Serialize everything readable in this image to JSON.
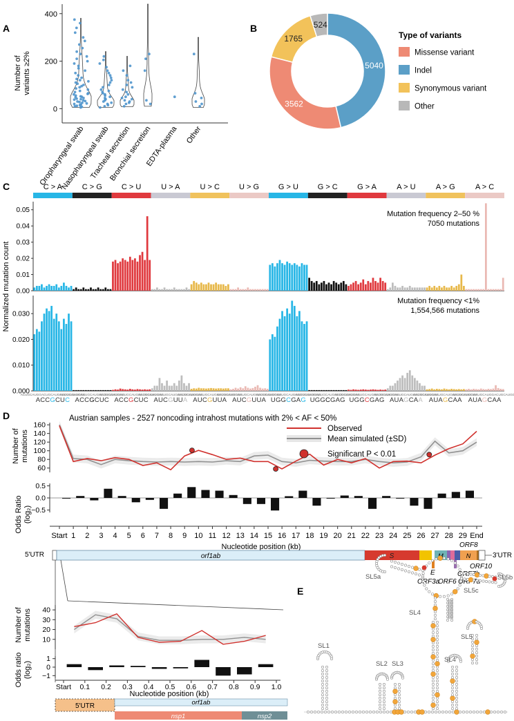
{
  "panel_labels": {
    "a": "A",
    "b": "B",
    "c": "C",
    "d": "D",
    "e": "E"
  },
  "chart_data": [
    {
      "type": "violin",
      "ylabel": "Number of variants ≥2%",
      "yticks": [
        0,
        200,
        400
      ],
      "ylim": [
        -60,
        440
      ],
      "categories": [
        "Oropharyngeal swab",
        "Nasopharyngeal swab",
        "Tracheal secretion",
        "Bronchial secretion",
        "EDTA-plasma",
        "Other"
      ],
      "points": [
        [
          5,
          8,
          10,
          12,
          15,
          18,
          20,
          22,
          25,
          28,
          30,
          32,
          35,
          38,
          40,
          42,
          45,
          48,
          50,
          52,
          55,
          60,
          62,
          65,
          70,
          75,
          80,
          85,
          90,
          95,
          100,
          105,
          110,
          115,
          120,
          125,
          130,
          140,
          150,
          160,
          170,
          180,
          190,
          200,
          210,
          220,
          230,
          240,
          255,
          270,
          285,
          300,
          320,
          340,
          360,
          375
        ],
        [
          5,
          10,
          15,
          20,
          25,
          30,
          35,
          40,
          45,
          50,
          55,
          60,
          65,
          70,
          75,
          80,
          90,
          100,
          110,
          120,
          130,
          140,
          150,
          160,
          175,
          190,
          205,
          220
        ],
        [
          10,
          20,
          25,
          30,
          35,
          40,
          45,
          50,
          60,
          70,
          80,
          90,
          100,
          110,
          120,
          140,
          160,
          180
        ],
        [
          20,
          35,
          160,
          210,
          230
        ],
        [
          50
        ],
        [
          10,
          20,
          30,
          45,
          65,
          230
        ]
      ]
    },
    {
      "type": "pie",
      "legend_title": "Type of variants",
      "slices": [
        {
          "label": "Indel",
          "value": 5040,
          "value_label": "5040",
          "color": "#5b9fc7"
        },
        {
          "label": "Missense variant",
          "value": 3562,
          "value_label": "3562",
          "color": "#ee8a74"
        },
        {
          "label": "Synonymous variant",
          "value": 1765,
          "value_label": "1765",
          "color": "#f2c25a"
        },
        {
          "label": "Other",
          "value": 524,
          "value_label": "524",
          "color": "#b8b8b8"
        }
      ],
      "legend": [
        {
          "label": "Missense variant",
          "color": "#ee8a74"
        },
        {
          "label": "Indel",
          "color": "#5b9fc7"
        },
        {
          "label": "Synonymous variant",
          "color": "#f2c25a"
        },
        {
          "label": "Other",
          "color": "#b8b8b8"
        }
      ]
    },
    {
      "type": "bar",
      "ylabel": "Normalized mutation count",
      "groups": [
        {
          "label": "C > A",
          "color": "#27b6e6"
        },
        {
          "label": "C > G",
          "color": "#222222"
        },
        {
          "label": "C > U",
          "color": "#e0393e"
        },
        {
          "label": "U > A",
          "color": "#c9c9d3"
        },
        {
          "label": "U > C",
          "color": "#f0c25c"
        },
        {
          "label": "U > G",
          "color": "#ebc9c5"
        },
        {
          "label": "G > U",
          "color": "#27b6e6"
        },
        {
          "label": "G > C",
          "color": "#222222"
        },
        {
          "label": "G > A",
          "color": "#e0393e"
        },
        {
          "label": "A > U",
          "color": "#c9c9d3"
        },
        {
          "label": "A > G",
          "color": "#f0c25c"
        },
        {
          "label": "A > C",
          "color": "#ebc9c5"
        }
      ],
      "bar_colors": [
        "#27b6e6",
        "#111111",
        "#e0393e",
        "#bdbdbd",
        "#e7b84a",
        "#eab9b3",
        "#27b6e6",
        "#111111",
        "#e0393e",
        "#bdbdbd",
        "#e7b84a",
        "#eab9b3"
      ],
      "top": {
        "annotation": [
          "Mutation frequency 2–50 %",
          "7050 mutations"
        ],
        "yticks": [
          0,
          0.01,
          0.02,
          0.03,
          0.04,
          0.05
        ],
        "ytick_labels": [
          "0.00",
          "0.01",
          "0.02",
          "0.03",
          "0.04",
          "0.05"
        ],
        "ylim": [
          0,
          0.055
        ],
        "values": [
          [
            0.002,
            0.003,
            0.003,
            0.004,
            0.002,
            0.003,
            0.004,
            0.003,
            0.003,
            0.004,
            0.002,
            0.003,
            0.005,
            0.003,
            0.002,
            0.003
          ],
          [
            0.001,
            0.002,
            0.001,
            0.001,
            0.002,
            0.001,
            0.001,
            0.002,
            0.001,
            0.001,
            0.002,
            0.001,
            0.001,
            0.002,
            0.001,
            0.001
          ],
          [
            0.018,
            0.019,
            0.017,
            0.018,
            0.02,
            0.019,
            0.018,
            0.021,
            0.019,
            0.02,
            0.018,
            0.022,
            0.024,
            0.019,
            0.046,
            0.019
          ],
          [
            0.001,
            0.001,
            0.002,
            0.001,
            0.001,
            0.002,
            0.001,
            0.001,
            0.001,
            0.002,
            0.001,
            0.001,
            0.001,
            0.001,
            0.002,
            0.001
          ],
          [
            0.004,
            0.006,
            0.005,
            0.004,
            0.005,
            0.004,
            0.004,
            0.005,
            0.004,
            0.004,
            0.005,
            0.004,
            0.004,
            0.004,
            0.003,
            0.004
          ],
          [
            0.001,
            0.001,
            0.001,
            0.002,
            0.001,
            0.001,
            0.001,
            0.002,
            0.001,
            0.001,
            0.001,
            0.001,
            0.001,
            0.001,
            0.001,
            0.001
          ],
          [
            0.016,
            0.017,
            0.015,
            0.017,
            0.019,
            0.017,
            0.016,
            0.018,
            0.017,
            0.016,
            0.017,
            0.016,
            0.015,
            0.017,
            0.016,
            0.016
          ],
          [
            0.008,
            0.006,
            0.005,
            0.006,
            0.004,
            0.005,
            0.006,
            0.004,
            0.005,
            0.004,
            0.006,
            0.005,
            0.004,
            0.005,
            0.006,
            0.004
          ],
          [
            0.003,
            0.004,
            0.005,
            0.006,
            0.004,
            0.005,
            0.007,
            0.004,
            0.006,
            0.005,
            0.008,
            0.006,
            0.005,
            0.008,
            0.006,
            0.005
          ],
          [
            0.001,
            0.002,
            0.005,
            0.003,
            0.002,
            0.002,
            0.003,
            0.002,
            0.002,
            0.003,
            0.002,
            0.002,
            0.002,
            0.002,
            0.002,
            0.002
          ],
          [
            0.002,
            0.003,
            0.002,
            0.003,
            0.002,
            0.003,
            0.002,
            0.003,
            0.002,
            0.002,
            0.003,
            0.002,
            0.003,
            0.004,
            0.01,
            0.003
          ],
          [
            0.001,
            0.001,
            0.001,
            0.001,
            0.001,
            0.001,
            0.001,
            0.001,
            0.054,
            0.001,
            0.001,
            0.001,
            0.001,
            0.001,
            0.001,
            0.008
          ]
        ]
      },
      "bottom": {
        "annotation": [
          "Mutation frequency <1%",
          "1,554,566 mutations"
        ],
        "yticks": [
          0,
          0.01,
          0.02,
          0.03
        ],
        "ytick_labels": [
          "0.000",
          "0.010",
          "0.020",
          "0.030"
        ],
        "ylim": [
          0,
          0.037
        ],
        "values": [
          [
            0.022,
            0.024,
            0.023,
            0.027,
            0.03,
            0.032,
            0.031,
            0.033,
            0.028,
            0.03,
            0.027,
            0.024,
            0.028,
            0.026,
            0.03,
            0.027
          ],
          [
            0.0003,
            0.0003,
            0.0003,
            0.0003,
            0.0003,
            0.0003,
            0.0003,
            0.0003,
            0.0003,
            0.0003,
            0.0003,
            0.0003,
            0.0003,
            0.0003,
            0.0003,
            0.0003
          ],
          [
            0.0004,
            0.0006,
            0.0005,
            0.0009,
            0.0007,
            0.0006,
            0.0005,
            0.0008,
            0.0006,
            0.0005,
            0.0007,
            0.0006,
            0.0005,
            0.0006,
            0.0005,
            0.0006
          ],
          [
            0.001,
            0.002,
            0.002,
            0.005,
            0.003,
            0.002,
            0.004,
            0.002,
            0.002,
            0.003,
            0.002,
            0.004,
            0.006,
            0.003,
            0.002,
            0.003
          ],
          [
            0.0008,
            0.001,
            0.0009,
            0.0012,
            0.001,
            0.001,
            0.0009,
            0.001,
            0.0011,
            0.001,
            0.0009,
            0.001,
            0.001,
            0.0009,
            0.001,
            0.001
          ],
          [
            0.0006,
            0.0008,
            0.0012,
            0.0009,
            0.0014,
            0.001,
            0.0018,
            0.0012,
            0.0009,
            0.0011,
            0.0016,
            0.0022,
            0.0012,
            0.0009,
            0.001,
            0.0008
          ],
          [
            0.02,
            0.022,
            0.021,
            0.025,
            0.028,
            0.031,
            0.029,
            0.032,
            0.03,
            0.035,
            0.033,
            0.029,
            0.031,
            0.027,
            0.026,
            0.027
          ],
          [
            0.0003,
            0.0003,
            0.0003,
            0.0003,
            0.0003,
            0.0003,
            0.0003,
            0.0003,
            0.0003,
            0.0003,
            0.0003,
            0.0003,
            0.0003,
            0.0003,
            0.0003,
            0.0003
          ],
          [
            0.0005,
            0.0004,
            0.0006,
            0.0005,
            0.0004,
            0.0005,
            0.0006,
            0.0005,
            0.0004,
            0.0005,
            0.0006,
            0.0005,
            0.0004,
            0.0005,
            0.0004,
            0.0005
          ],
          [
            0.001,
            0.002,
            0.002,
            0.003,
            0.004,
            0.005,
            0.006,
            0.005,
            0.007,
            0.008,
            0.006,
            0.005,
            0.004,
            0.003,
            0.002,
            0.002
          ],
          [
            0.0006,
            0.0007,
            0.0009,
            0.0006,
            0.0008,
            0.0007,
            0.0006,
            0.0009,
            0.0007,
            0.0006,
            0.0008,
            0.0007,
            0.0006,
            0.0007,
            0.0006,
            0.0007
          ],
          [
            0.0006,
            0.0008,
            0.0006,
            0.0008,
            0.0007,
            0.0006,
            0.0009,
            0.0007,
            0.0006,
            0.0008,
            0.0007,
            0.0009,
            0.0022,
            0.0011,
            0.0008,
            0.0007
          ]
        ]
      },
      "context_small": "ACUGCAUGGACUGCAUGGACUGCAUGGACUGCAUGG",
      "context_motifs": [
        "ACCGCUC",
        "ACCGCUC",
        "ACCGCUC",
        "AUCGUUA",
        "AUCGUUA",
        "AUCGUUA",
        "UGGCGAG",
        "UGGCGAG",
        "UGGCGAG",
        "AUAGCAA",
        "AUAGCAA",
        "AUAGCAA"
      ]
    },
    {
      "type": "line",
      "title": "Austrian samples - 2527 noncoding intrahost mutations with 2% < AF < 50%",
      "ylabel": "Number of mutations",
      "ylim": [
        50,
        165
      ],
      "yticks": [
        60,
        80,
        100,
        120,
        140,
        160
      ],
      "xlabel": "Nucleotide position (kb)",
      "xtick_labels": [
        "Start",
        "1",
        "2",
        "3",
        "4",
        "5",
        "6",
        "7",
        "8",
        "9",
        "10",
        "11",
        "12",
        "13",
        "14",
        "15",
        "16",
        "17",
        "18",
        "19",
        "20",
        "21",
        "22",
        "23",
        "24",
        "25",
        "26",
        "27",
        "28",
        "29",
        "End"
      ],
      "series": [
        {
          "name": "Observed",
          "color": "#d0312d",
          "values": [
            158,
            75,
            82,
            77,
            84,
            80,
            66,
            72,
            56,
            88,
            101,
            91,
            80,
            83,
            75,
            75,
            58,
            76,
            92,
            67,
            80,
            72,
            82,
            60,
            75,
            76,
            72,
            90,
            105,
            116,
            145
          ]
        },
        {
          "name": "Mean simulated (±SD)",
          "color": "#909090",
          "values": [
            160,
            82,
            80,
            68,
            80,
            77,
            75,
            74,
            75,
            74,
            75,
            74,
            77,
            75,
            88,
            90,
            75,
            72,
            78,
            76,
            75,
            75,
            80,
            75,
            72,
            74,
            86,
            122,
            95,
            100,
            120
          ]
        }
      ],
      "significant_points": [
        {
          "x": "9.5",
          "y": 101
        },
        {
          "x": "15.5",
          "y": 58
        },
        {
          "x": "26.5",
          "y": 91
        }
      ],
      "significant_label": "Significant P < 0.01",
      "odds": {
        "ylabel": "Odds Ratio (log2)",
        "yticks": [
          -0.5,
          0.0,
          0.5
        ],
        "ytick_labels": [
          "−0.5",
          "0.0",
          "0.5"
        ],
        "ylim": [
          -0.6,
          0.6
        ],
        "values": [
          0.0,
          0.08,
          -0.1,
          0.38,
          0.08,
          -0.18,
          -0.08,
          -0.45,
          0.18,
          0.45,
          0.33,
          0.3,
          0.12,
          -0.25,
          -0.25,
          -0.52,
          0.07,
          0.3,
          -0.32,
          0.0,
          0.1,
          0.08,
          -0.45,
          0.08,
          0.0,
          -0.32,
          -0.45,
          0.18,
          0.25,
          0.3
        ]
      }
    },
    {
      "type": "line",
      "ylabel": "Number of mutations",
      "ylim": [
        0,
        45
      ],
      "yticks": [
        10,
        20,
        30,
        40
      ],
      "xlabel": "Nucleotide position (kb)",
      "xtick_labels": [
        "Start",
        "0.1",
        "0.2",
        "0.3",
        "0.4",
        "0.5",
        "0.6",
        "0.7",
        "0.8",
        "0.9",
        "1.0"
      ],
      "series": [
        {
          "name": "Observed",
          "color": "#d0312d",
          "values": [
            23,
            27,
            36,
            12,
            7,
            8,
            19,
            5,
            8,
            14
          ]
        },
        {
          "name": "Mean simulated",
          "color": "#909090",
          "values": [
            20,
            35,
            31,
            13,
            9,
            9,
            10,
            10,
            12,
            10
          ]
        }
      ],
      "odds": {
        "ylabel": "Odds ratio (log2)",
        "yticks": [
          -1,
          0,
          1
        ],
        "ytick_labels": [
          "−1",
          "0",
          "1"
        ],
        "ylim": [
          -1.3,
          1.3
        ],
        "values": [
          0.35,
          -0.35,
          0.2,
          0.15,
          -0.2,
          -0.15,
          0.85,
          -1.0,
          -0.85,
          0.35
        ]
      }
    }
  ],
  "genome": {
    "utr5": "5'UTR",
    "utr3": "3'UTR",
    "genes": [
      "orf1ab",
      "S",
      "M",
      "N",
      "E",
      "ORF3a",
      "ORF6",
      "ORF7a",
      "ORF7b",
      "ORF8",
      "ORF10"
    ]
  },
  "zoom": {
    "utr5": "5'UTR",
    "orf1ab": "orf1ab",
    "nsp1": "nsp1",
    "nsp2": "nsp2"
  },
  "structure_labels": [
    "SL1",
    "SL2",
    "SL3",
    "SL4",
    "SL4'",
    "SL5",
    "SL5a",
    "SL5b",
    "SL5c"
  ]
}
